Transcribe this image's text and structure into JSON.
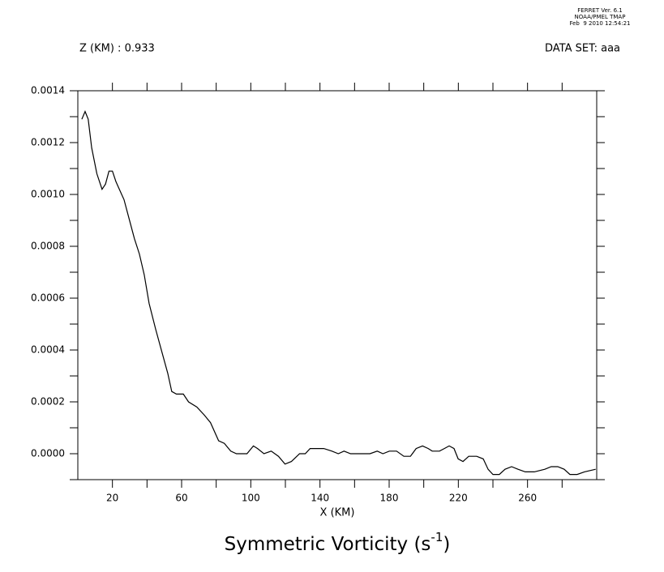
{
  "header": {
    "lines": [
      "FERRET Ver. 6.1",
      "NOAA/PMEL TMAP",
      "Feb  9 2010 12:54:21"
    ],
    "z_label": "Z (KM) : 0.933",
    "dataset_label": "DATA SET: aaa"
  },
  "chart_data": {
    "type": "line",
    "title": [
      "Symmetric Vorticity (s",
      "-1",
      ")"
    ],
    "x_label": "X (KM)",
    "xlim": [
      0,
      300
    ],
    "xticks": [
      20,
      60,
      100,
      140,
      180,
      220,
      260
    ],
    "x_minor_ticks": [
      40,
      80,
      120,
      160,
      200,
      240,
      280
    ],
    "ylim": [
      -0.0001,
      0.0014
    ],
    "yticks": [
      {
        "value": 0,
        "label": "0.0000"
      },
      {
        "value": 0.0002,
        "label": "0.0002"
      },
      {
        "value": 0.0004,
        "label": "0.0004"
      },
      {
        "value": 0.0006,
        "label": "0.0006"
      },
      {
        "value": 0.0008,
        "label": "0.0008"
      },
      {
        "value": 0.001,
        "label": "0.0010"
      },
      {
        "value": 0.0012,
        "label": "0.0012"
      },
      {
        "value": 0.0014,
        "label": "0.0014"
      }
    ],
    "y_minor_ticks": [
      -0.0001,
      0.0001,
      0.0003,
      0.0005,
      0.0007,
      0.0009,
      0.0011,
      0.0013
    ],
    "color": "#000000",
    "x": [
      2.3,
      4.2,
      6,
      8,
      11,
      14,
      16,
      18,
      20,
      22,
      24,
      26.7,
      29.5,
      32.7,
      35.6,
      38.4,
      41.2,
      45,
      48.7,
      52,
      54.3,
      57,
      61,
      64,
      68.8,
      73,
      76.7,
      81.4,
      84.7,
      88.4,
      91.7,
      95.4,
      97.8,
      101.5,
      103.9,
      107.6,
      111.8,
      116,
      119.8,
      123.5,
      128.2,
      131.5,
      134.3,
      138.5,
      142.2,
      146.9,
      150.6,
      153.9,
      157.7,
      163.3,
      168.9,
      173.1,
      176.4,
      180.1,
      184.3,
      188.5,
      192.3,
      195.6,
      199.3,
      202.6,
      204.9,
      209.1,
      211.9,
      214.7,
      217.5,
      219.9,
      222.7,
      226,
      230.6,
      234.4,
      237.2,
      240,
      243.7,
      247,
      250.8,
      254.5,
      258.7,
      263.9,
      270,
      273.7,
      277.5,
      281.2,
      284.5,
      288.7,
      292.9,
      299.4
    ],
    "values": [
      0.00129,
      0.00132,
      0.00129,
      0.00118,
      0.00108,
      0.00102,
      0.00104,
      0.00109,
      0.00109,
      0.00105,
      0.00102,
      0.00098,
      0.00091,
      0.00083,
      0.00077,
      0.00069,
      0.00058,
      0.00048,
      0.00039,
      0.00031,
      0.00024,
      0.00023,
      0.00023,
      0.0002,
      0.00018,
      0.00015,
      0.00012,
      5e-05,
      4e-05,
      1e-05,
      0,
      0,
      0,
      3e-05,
      2e-05,
      0,
      1e-05,
      -1e-05,
      -4e-05,
      -3e-05,
      0,
      0,
      2e-05,
      2e-05,
      2e-05,
      1e-05,
      0,
      1e-05,
      0,
      0,
      0,
      1e-05,
      0,
      1e-05,
      1e-05,
      -1e-05,
      -1e-05,
      2e-05,
      3e-05,
      2e-05,
      1e-05,
      1e-05,
      2e-05,
      3e-05,
      2e-05,
      -2e-05,
      -3e-05,
      -1e-05,
      -1e-05,
      -2e-05,
      -6e-05,
      -8e-05,
      -8e-05,
      -6e-05,
      -5e-05,
      -6e-05,
      -7e-05,
      -7e-05,
      -6e-05,
      -5e-05,
      -5e-05,
      -6e-05,
      -8e-05,
      -8e-05,
      -7e-05,
      -6e-05
    ]
  }
}
